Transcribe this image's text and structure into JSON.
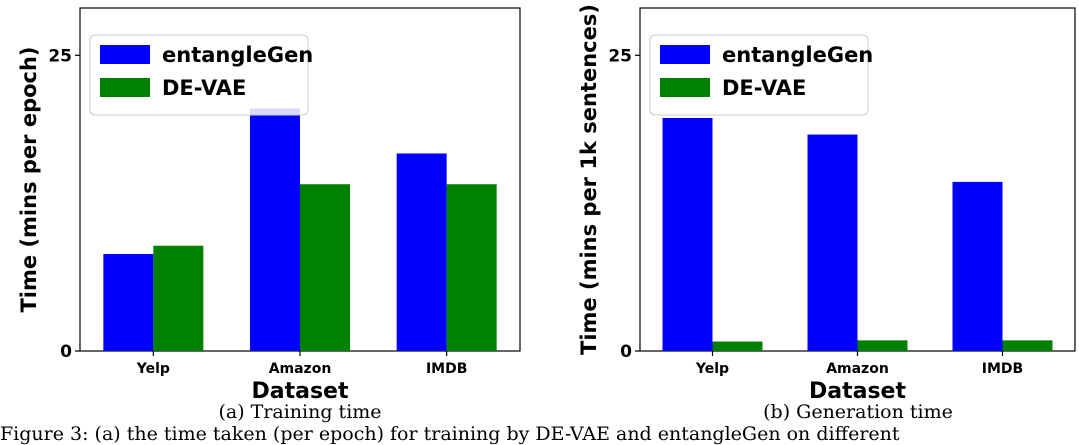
{
  "figure": {
    "bottom_caption": "Figure 3: (a) the time taken (per epoch) for training by DE-VAE and entangleGen on different"
  },
  "chart_data": [
    {
      "type": "bar",
      "caption": "(a) Training time",
      "categories": [
        "Yelp",
        "Amazon",
        "IMDB"
      ],
      "series": [
        {
          "name": "entangleGen",
          "color": "#0000ff",
          "values": [
            8.2,
            20.5,
            16.7
          ]
        },
        {
          "name": "DE-VAE",
          "color": "#008000",
          "values": [
            8.9,
            14.1,
            14.1
          ]
        }
      ],
      "xlabel": "Dataset",
      "ylabel": "Time (mins per epoch)",
      "ylim": [
        0,
        29
      ],
      "yticks": [
        0,
        25
      ],
      "legend": "top-left",
      "grid": false
    },
    {
      "type": "bar",
      "caption": "(b) Generation time",
      "categories": [
        "Yelp",
        "Amazon",
        "IMDB"
      ],
      "series": [
        {
          "name": "entangleGen",
          "color": "#0000ff",
          "values": [
            19.7,
            18.3,
            14.3
          ]
        },
        {
          "name": "DE-VAE",
          "color": "#008000",
          "values": [
            0.8,
            0.9,
            0.9
          ]
        }
      ],
      "xlabel": "Dataset",
      "ylabel": "Time (mins per 1k sentences)",
      "ylim": [
        0,
        29
      ],
      "yticks": [
        0,
        25
      ],
      "legend": "top-left",
      "grid": false
    }
  ]
}
